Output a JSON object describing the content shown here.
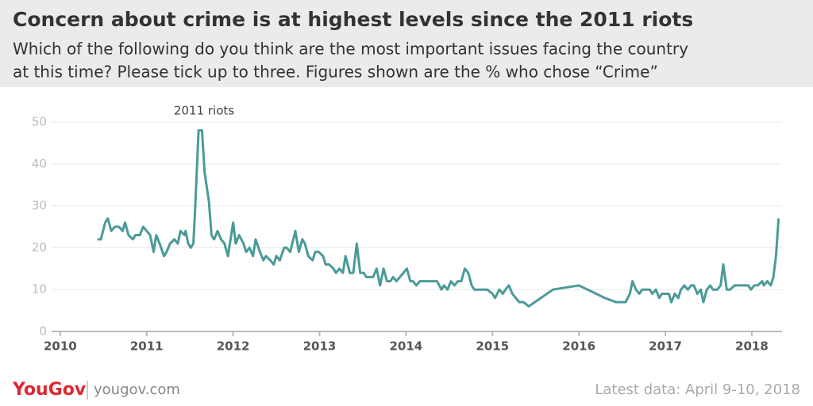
{
  "chart_data": {
    "type": "line",
    "title": "Concern about crime is at highest levels since the 2011 riots",
    "subtitle": [
      "Which of the following do you think are the most important issues facing the country",
      "at this time? Please tick up to three. Figures shown are the % who chose “Crime”"
    ],
    "annotation": "2011 riots",
    "x": [
      2010.43,
      2010.47,
      2010.52,
      2010.55,
      2010.59,
      2010.63,
      2010.68,
      2010.72,
      2010.75,
      2010.79,
      2010.84,
      2010.87,
      2010.92,
      2010.96,
      2011.0,
      2011.04,
      2011.08,
      2011.11,
      2011.15,
      2011.2,
      2011.23,
      2011.27,
      2011.32,
      2011.36,
      2011.39,
      2011.44,
      2011.45,
      2011.48,
      2011.51,
      2011.54,
      2011.56,
      2011.6,
      2011.64,
      2011.67,
      2011.72,
      2011.75,
      2011.78,
      2011.82,
      2011.86,
      2011.9,
      2011.94,
      2012.0,
      2012.03,
      2012.07,
      2012.12,
      2012.15,
      2012.19,
      2012.23,
      2012.26,
      2012.31,
      2012.35,
      2012.38,
      2012.43,
      2012.47,
      2012.5,
      2012.54,
      2012.59,
      2012.62,
      2012.66,
      2012.72,
      2012.76,
      2012.8,
      2012.83,
      2012.87,
      2012.92,
      2012.95,
      2012.99,
      2013.04,
      2013.07,
      2013.11,
      2013.16,
      2013.19,
      2013.23,
      2013.27,
      2013.3,
      2013.35,
      2013.39,
      2013.43,
      2013.47,
      2013.51,
      2013.54,
      2013.59,
      2013.62,
      2013.66,
      2013.7,
      2013.74,
      2013.78,
      2013.82,
      2013.85,
      2013.89,
      2013.93,
      2013.97,
      2014.01,
      2014.05,
      2014.08,
      2014.12,
      2014.16,
      2014.2,
      2014.24,
      2014.28,
      2014.36,
      2014.41,
      2014.44,
      2014.48,
      2014.52,
      2014.56,
      2014.6,
      2014.64,
      2014.68,
      2014.72,
      2014.76,
      2014.79,
      2014.9,
      2014.94,
      2015.0,
      2015.03,
      2015.08,
      2015.12,
      2015.15,
      2015.19,
      2015.23,
      2015.27,
      2015.31,
      2015.36,
      2015.42,
      2015.7,
      2016.0,
      2016.3,
      2016.43,
      2016.54,
      2016.59,
      2016.62,
      2016.66,
      2016.7,
      2016.73,
      2016.78,
      2016.82,
      2016.85,
      2016.89,
      2016.93,
      2016.96,
      2017.0,
      2017.04,
      2017.07,
      2017.11,
      2017.15,
      2017.18,
      2017.22,
      2017.26,
      2017.3,
      2017.33,
      2017.37,
      2017.41,
      2017.44,
      2017.48,
      2017.52,
      2017.55,
      2017.6,
      2017.64,
      2017.67,
      2017.71,
      2017.75,
      2017.8,
      2017.96,
      2017.99,
      2018.03,
      2018.07,
      2018.12,
      2018.14,
      2018.18,
      2018.22,
      2018.25,
      2018.28,
      2018.31
    ],
    "series": [
      {
        "name": "Crime",
        "color": "#4a9b98",
        "values": [
          22,
          22,
          26,
          27,
          24,
          25,
          25,
          24,
          26,
          23,
          22,
          23,
          23,
          25,
          24,
          23,
          19,
          23,
          21,
          18,
          19,
          21,
          22,
          21,
          24,
          23,
          24,
          21,
          20,
          21,
          29,
          48,
          48,
          38,
          31,
          23,
          22,
          24,
          22,
          21,
          18,
          26,
          21,
          23,
          21,
          19,
          20,
          18,
          22,
          19,
          17,
          18,
          17,
          16,
          18,
          17,
          20,
          20,
          19,
          24,
          19,
          22,
          21,
          18,
          17,
          19,
          19,
          18,
          16,
          16,
          15,
          14,
          15,
          14,
          18,
          14,
          14,
          21,
          14,
          14,
          13,
          13,
          13,
          15,
          11,
          15,
          12,
          12,
          13,
          12,
          13,
          14,
          15,
          12,
          12,
          11,
          12,
          12,
          12,
          12,
          12,
          10,
          11,
          10,
          12,
          11,
          12,
          12,
          15,
          14,
          11,
          10,
          10,
          10,
          9,
          8,
          10,
          9,
          10,
          11,
          9,
          8,
          7,
          7,
          6,
          10,
          11,
          8,
          7,
          7,
          9,
          12,
          10,
          9,
          10,
          10,
          10,
          9,
          10,
          8,
          9,
          9,
          9,
          7,
          9,
          8,
          10,
          11,
          10,
          11,
          11,
          9,
          10,
          7,
          10,
          11,
          10,
          10,
          11,
          16,
          10,
          10,
          11,
          11,
          10,
          11,
          11,
          12,
          11,
          12,
          11,
          13,
          18,
          27
        ]
      }
    ],
    "xlim": [
      2009.9,
      2018.35
    ],
    "xticks": [
      2010,
      2011,
      2012,
      2013,
      2014,
      2015,
      2016,
      2017,
      2018
    ],
    "ylim": [
      0,
      50
    ],
    "yticks": [
      0,
      10,
      20,
      30,
      40,
      50
    ],
    "grid": true
  },
  "footer": {
    "logo": "YouGov",
    "site": "yougov.com",
    "note": "Latest data: April 9-10, 2018"
  }
}
